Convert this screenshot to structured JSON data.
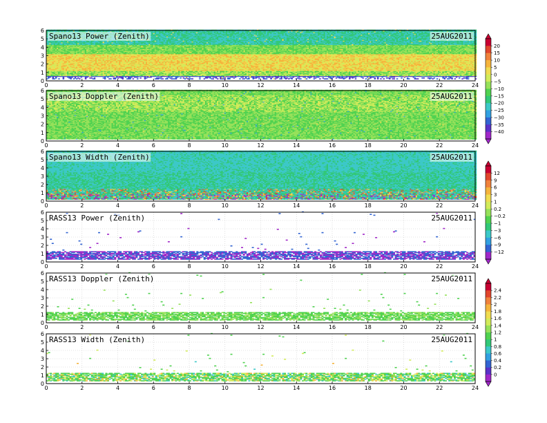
{
  "figure": {
    "date": "25AUG2011"
  },
  "chart_data": [
    {
      "type": "heatmap",
      "title": "Spano13 Power (Zenith)",
      "date": "25AUG2011",
      "x_ticks": [
        "0",
        "2",
        "4",
        "6",
        "8",
        "10",
        "12",
        "14",
        "16",
        "18",
        "20",
        "22",
        "24"
      ],
      "y_ticks": [
        "0",
        "1",
        "2",
        "3",
        "4",
        "5",
        "6"
      ],
      "xlim": [
        0,
        24
      ],
      "ylim": [
        0,
        6
      ],
      "grid": true,
      "field": "power",
      "density": 1.0,
      "colorbar": 0
    },
    {
      "type": "heatmap",
      "title": "Spano13 Doppler (Zenith)",
      "date": "25AUG2011",
      "x_ticks": [
        "0",
        "2",
        "4",
        "6",
        "8",
        "10",
        "12",
        "14",
        "16",
        "18",
        "20",
        "22",
        "24"
      ],
      "y_ticks": [
        "0",
        "1",
        "2",
        "3",
        "4",
        "5",
        "6"
      ],
      "xlim": [
        0,
        24
      ],
      "ylim": [
        0,
        6
      ],
      "grid": true,
      "field": "doppler",
      "density": 1.0,
      "colorbar": 0
    },
    {
      "type": "heatmap",
      "title": "Spano13 Width (Zenith)",
      "date": "25AUG2011",
      "x_ticks": [
        "0",
        "2",
        "4",
        "6",
        "8",
        "10",
        "12",
        "14",
        "16",
        "18",
        "20",
        "22",
        "24"
      ],
      "y_ticks": [
        "0",
        "1",
        "2",
        "3",
        "4",
        "5",
        "6"
      ],
      "xlim": [
        0,
        24
      ],
      "ylim": [
        0,
        6
      ],
      "grid": true,
      "field": "width",
      "density": 1.0,
      "colorbar": 1
    },
    {
      "type": "scatter",
      "title": "RASS13 Power (Zenith)",
      "date": "25AUG2011",
      "x_ticks": [
        "0",
        "2",
        "4",
        "6",
        "8",
        "10",
        "12",
        "14",
        "16",
        "18",
        "20",
        "22",
        "24"
      ],
      "y_ticks": [
        "0",
        "1",
        "2",
        "3",
        "4",
        "5",
        "6"
      ],
      "xlim": [
        0,
        24
      ],
      "ylim": [
        0,
        6
      ],
      "grid": true,
      "field": "rass_power",
      "density": 0.2,
      "colorbar": 1
    },
    {
      "type": "scatter",
      "title": "RASS13 Doppler (Zenith)",
      "date": "25AUG2011",
      "x_ticks": [
        "0",
        "2",
        "4",
        "6",
        "8",
        "10",
        "12",
        "14",
        "16",
        "18",
        "20",
        "22",
        "24"
      ],
      "y_ticks": [
        "0",
        "1",
        "2",
        "3",
        "4",
        "5",
        "6"
      ],
      "xlim": [
        0,
        24
      ],
      "ylim": [
        0,
        6
      ],
      "grid": true,
      "field": "rass_doppler",
      "density": 0.2,
      "colorbar": 2
    },
    {
      "type": "scatter",
      "title": "RASS13 Width (Zenith)",
      "date": "25AUG2011",
      "x_ticks": [
        "0",
        "2",
        "4",
        "6",
        "8",
        "10",
        "12",
        "14",
        "16",
        "18",
        "20",
        "22",
        "24"
      ],
      "y_ticks": [
        "0",
        "1",
        "2",
        "3",
        "4",
        "5",
        "6"
      ],
      "xlim": [
        0,
        24
      ],
      "ylim": [
        0,
        6
      ],
      "grid": true,
      "field": "rass_width",
      "density": 0.2,
      "colorbar": 2
    }
  ],
  "colorbars": [
    {
      "labels": [
        "20",
        "15",
        "10",
        "5",
        "0",
        "−5",
        "−10",
        "−15",
        "−20",
        "−25",
        "−30",
        "−35",
        "−40"
      ],
      "colors": [
        "#c80032",
        "#e1462d",
        "#f0823c",
        "#f5b43c",
        "#f0dc50",
        "#d2eb5a",
        "#96e15a",
        "#50d250",
        "#32c878",
        "#3cc8c8",
        "#32a0e1",
        "#3264d2",
        "#5a32c8",
        "#a028c8"
      ]
    },
    {
      "labels": [
        "12",
        "9",
        "6",
        "3",
        "1",
        "0.2",
        "−0.2",
        "−1",
        "−3",
        "−6",
        "−9",
        "−12"
      ],
      "colors": [
        "#c80032",
        "#e1462d",
        "#f0823c",
        "#f5b43c",
        "#f0dc50",
        "#d2eb5a",
        "#96e15a",
        "#50d250",
        "#32c878",
        "#3cc8c8",
        "#32a0e1",
        "#3264d2",
        "#a028c8"
      ]
    },
    {
      "labels": [
        "2.4",
        "2.2",
        "2",
        "1.8",
        "1.6",
        "1.4",
        "1.2",
        "1",
        "0.8",
        "0.6",
        "0.4",
        "0.2",
        "0"
      ],
      "colors": [
        "#c80032",
        "#e1462d",
        "#f0823c",
        "#f5b43c",
        "#f0dc50",
        "#d2eb5a",
        "#96e15a",
        "#50d250",
        "#32c878",
        "#3cc8c8",
        "#32a0e1",
        "#3264d2",
        "#5a32c8",
        "#a028c8"
      ]
    }
  ]
}
